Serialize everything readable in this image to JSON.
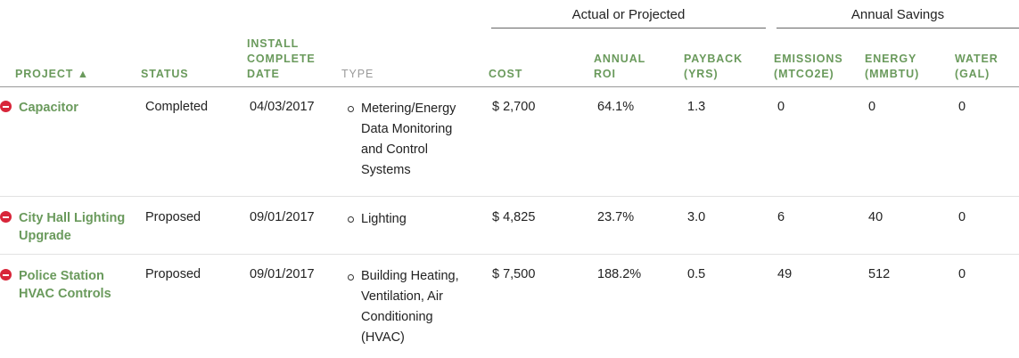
{
  "groups": {
    "actual": "Actual or Projected",
    "savings": "Annual Savings"
  },
  "columns": {
    "project": "PROJECT ▲",
    "status": "STATUS",
    "install_date": "INSTALL COMPLETE DATE",
    "type": "TYPE",
    "cost": "COST",
    "annual_roi": "ANNUAL ROI",
    "payback": "PAYBACK (YRS)",
    "emissions": "EMISSIONS (MTCO2E)",
    "energy": "ENERGY (MMBTU)",
    "water": "WATER (GAL)"
  },
  "colors": {
    "accent": "#6a9a5c",
    "remove": "#d8263a"
  },
  "rows": [
    {
      "project": "Capacitor",
      "status": "Completed",
      "date": "04/03/2017",
      "type": "Metering/Energy Data Monitoring and Control Systems",
      "cost": "$ 2,700",
      "roi": "64.1%",
      "payback": "1.3",
      "emissions": "0",
      "energy": "0",
      "water": "0"
    },
    {
      "project": "City Hall Lighting Upgrade",
      "status": "Proposed",
      "date": "09/01/2017",
      "type": "Lighting",
      "cost": "$ 4,825",
      "roi": "23.7%",
      "payback": "3.0",
      "emissions": "6",
      "energy": "40",
      "water": "0"
    },
    {
      "project": "Police Station HVAC Controls",
      "status": "Proposed",
      "date": "09/01/2017",
      "type": "Building Heating, Ventilation, Air Conditioning (HVAC)",
      "cost": "$ 7,500",
      "roi": "188.2%",
      "payback": "0.5",
      "emissions": "49",
      "energy": "512",
      "water": "0"
    }
  ]
}
